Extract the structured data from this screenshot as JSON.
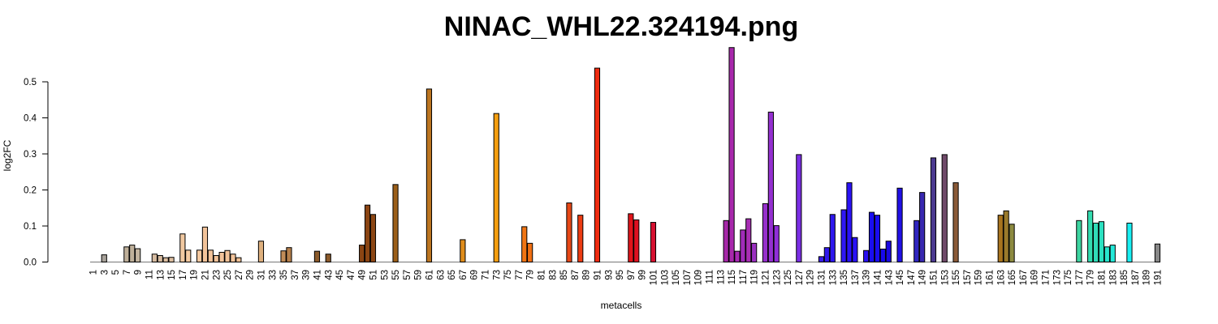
{
  "chart_data": {
    "type": "bar",
    "title": "NINAC_WHL22.324194.png",
    "xlabel": "metacells",
    "ylabel": "log2FC",
    "ylim": [
      0,
      0.6
    ],
    "yticks": [
      "0.0",
      "0.1",
      "0.2",
      "0.3",
      "0.4",
      "0.5"
    ],
    "grid": false,
    "baseline_color": "#777777",
    "categories": [
      "1",
      "2",
      "3",
      "4",
      "5",
      "6",
      "7",
      "8",
      "9",
      "10",
      "11",
      "12",
      "13",
      "14",
      "15",
      "16",
      "17",
      "18",
      "19",
      "20",
      "21",
      "22",
      "23",
      "24",
      "25",
      "26",
      "27",
      "28",
      "29",
      "30",
      "31",
      "32",
      "33",
      "34",
      "35",
      "36",
      "37",
      "38",
      "39",
      "40",
      "41",
      "42",
      "43",
      "44",
      "45",
      "46",
      "47",
      "48",
      "49",
      "50",
      "51",
      "52",
      "53",
      "54",
      "55",
      "56",
      "57",
      "58",
      "59",
      "60",
      "61",
      "62",
      "63",
      "64",
      "65",
      "66",
      "67",
      "68",
      "69",
      "70",
      "71",
      "72",
      "73",
      "74",
      "75",
      "76",
      "77",
      "78",
      "79",
      "80",
      "81",
      "82",
      "83",
      "84",
      "85",
      "86",
      "87",
      "88",
      "89",
      "90",
      "91",
      "92",
      "93",
      "94",
      "95",
      "96",
      "97",
      "98",
      "99",
      "100",
      "101",
      "102",
      "103",
      "104",
      "105",
      "106",
      "107",
      "108",
      "109",
      "110",
      "111",
      "112",
      "113",
      "114",
      "115",
      "116",
      "117",
      "118",
      "119",
      "120",
      "121",
      "122",
      "123",
      "124",
      "125",
      "126",
      "127",
      "128",
      "129",
      "130",
      "131",
      "132",
      "133",
      "134",
      "135",
      "136",
      "137",
      "138",
      "139",
      "140",
      "141",
      "142",
      "143",
      "144",
      "145",
      "146",
      "147",
      "148",
      "149",
      "150",
      "151",
      "152",
      "153",
      "154",
      "155",
      "156",
      "157",
      "158",
      "159",
      "160",
      "161",
      "162",
      "163",
      "164",
      "165",
      "166",
      "167",
      "168",
      "169",
      "170",
      "171",
      "172",
      "173",
      "174",
      "175",
      "176",
      "177",
      "178",
      "179",
      "180",
      "181",
      "182",
      "183",
      "184",
      "185",
      "186",
      "187",
      "188",
      "189",
      "190",
      "191"
    ],
    "values": [
      0,
      0,
      0.02,
      0,
      0,
      0,
      0.042,
      0.047,
      0.037,
      0,
      0,
      0.022,
      0.018,
      0.012,
      0.013,
      0,
      0.078,
      0.033,
      0,
      0.033,
      0.097,
      0.033,
      0.018,
      0.027,
      0.032,
      0.022,
      0.012,
      0,
      0,
      0,
      0.058,
      0,
      0,
      0,
      0.031,
      0.04,
      0,
      0,
      0,
      0,
      0.03,
      0,
      0.022,
      0,
      0,
      0,
      0,
      0,
      0.047,
      0.158,
      0.132,
      0,
      0,
      0,
      0.215,
      0,
      0,
      0,
      0,
      0,
      0.48,
      0,
      0,
      0,
      0,
      0,
      0.062,
      0,
      0,
      0,
      0,
      0,
      0.412,
      0,
      0,
      0,
      0,
      0.098,
      0.052,
      0,
      0,
      0,
      0,
      0,
      0,
      0.164,
      0,
      0.13,
      0,
      0,
      0.538,
      0,
      0,
      0,
      0,
      0,
      0.134,
      0.117,
      0,
      0,
      0.11,
      0,
      0,
      0,
      0,
      0,
      0,
      0,
      0,
      0,
      0,
      0,
      0,
      0.115,
      0.595,
      0.03,
      0.089,
      0.12,
      0.052,
      0,
      0.162,
      0.416,
      0.101,
      0,
      0,
      0,
      0.298,
      0,
      0,
      0,
      0.015,
      0.04,
      0.132,
      0,
      0.145,
      0.22,
      0.068,
      0,
      0.032,
      0.138,
      0.13,
      0.036,
      0.058,
      0,
      0.205,
      0,
      0,
      0.115,
      0.193,
      0,
      0.289,
      0,
      0.298,
      0,
      0.22,
      0,
      0,
      0,
      0,
      0,
      0,
      0,
      0.13,
      0.142,
      0.105,
      0,
      0,
      0,
      0,
      0,
      0,
      0,
      0,
      0,
      0,
      0,
      0.115,
      0,
      0.142,
      0.108,
      0.112,
      0.042,
      0.047,
      0,
      0,
      0.108,
      0,
      0,
      0,
      0,
      0.05
    ],
    "colors": [
      "#a9a9a9",
      "#a9a9a9",
      "#a8a29a",
      "#a8a29a",
      "#b0a898",
      "#b0a898",
      "#bfb09a",
      "#bfb09a",
      "#c4b5a0",
      "#c4b5a0",
      "#d0b8a0",
      "#d6bba0",
      "#d6bba0",
      "#dcbea0",
      "#dcbea0",
      "#e6c3a0",
      "#f0c8a0",
      "#f5cba2",
      "#f5cba2",
      "#f5c9a0",
      "#f2c39a",
      "#f2c39a",
      "#f2c39a",
      "#f2c39a",
      "#f2c39a",
      "#f2c39a",
      "#f0c095",
      "#e6b585",
      "#e0b080",
      "#ddb080",
      "#deb07e",
      "#d6a575",
      "#d0a070",
      "#c89868",
      "#c08c58",
      "#b5804c",
      "#b07a45",
      "#a87040",
      "#a06a3a",
      "#9a6535",
      "#8b5a2b",
      "#8b5a2b",
      "#8b5a2b",
      "#8b5a2b",
      "#8b4a1a",
      "#8b4513",
      "#8b4513",
      "#8b4513",
      "#8b4513",
      "#8b4513",
      "#8b4513",
      "#8b4c16",
      "#8f5516",
      "#955b18",
      "#9b5e18",
      "#a06318",
      "#a66819",
      "#ab6c1a",
      "#b0701c",
      "#b5731d",
      "#bc7520",
      "#c0781e",
      "#c47c1d",
      "#c87f1c",
      "#cd831b",
      "#d2861a",
      "#df8c1a",
      "#e39019",
      "#e89418",
      "#ec9717",
      "#f09b16",
      "#f29c12",
      "#f59e0f",
      "#f4940f",
      "#f38a10",
      "#f28012",
      "#f07814",
      "#f07514",
      "#f07014",
      "#ee6a14",
      "#ec6414",
      "#ea5e15",
      "#e85816",
      "#e65216",
      "#e64b16",
      "#e64716",
      "#e84a14",
      "#ec3c12",
      "#ee3412",
      "#f02c10",
      "#ee2b10",
      "#e82812",
      "#e62414",
      "#e42016",
      "#e01c18",
      "#dc181a",
      "#e0141a",
      "#de1020",
      "#dc1026",
      "#d8102c",
      "#d51030",
      "#cc1a50",
      "#c41e64",
      "#bc2274",
      "#b42680",
      "#ac2a8c",
      "#a82c94",
      "#a42e9c",
      "#a030a2",
      "#a032a6",
      "#a030a8",
      "#a232aa",
      "#a835aa",
      "#a628a8",
      "#a828ac",
      "#a82ab4",
      "#a02cb8",
      "#a82eb4",
      "#9a30c0",
      "#9a30c4",
      "#9630cc",
      "#9430d0",
      "#902ed8",
      "#8c2ede",
      "#862ee0",
      "#822ee4",
      "#7a2ee4",
      "#6a26e4",
      "#5a22e4",
      "#4a20e6",
      "#3a1ee8",
      "#3018ec",
      "#2e18ee",
      "#3024f2",
      "#3018f4",
      "#2a12f6",
      "#2a12f4",
      "#2410f0",
      "#2a10f0",
      "#1a0ef0",
      "#1a0cf0",
      "#1808ec",
      "#1a08e0",
      "#1a0ae4",
      "#2010e6",
      "#2a20d6",
      "#3428c4",
      "#3026c0",
      "#3828b0",
      "#4030a0",
      "#4c3a90",
      "#5a4484",
      "#704a6a",
      "#7e5250",
      "#8a5a38",
      "#966428",
      "#9e6a24",
      "#a27020",
      "#a8741e",
      "#a8741e",
      "#a8741e",
      "#a8741e",
      "#a8741e",
      "#9a7a2c",
      "#8c8a40",
      "#7a9650",
      "#6aa060",
      "#5aac70",
      "#5ab07a",
      "#5ab47e",
      "#5ab880",
      "#5ab880",
      "#56bc84",
      "#50c288",
      "#48cc90",
      "#40d098",
      "#3cd4a0",
      "#38d8a8",
      "#34dcb0",
      "#30dcb8",
      "#2ce0c0",
      "#28e4cc",
      "#24e8d8",
      "#20ece6",
      "#1cf0f0",
      "#18f0f4",
      "#18f0f4"
    ]
  }
}
